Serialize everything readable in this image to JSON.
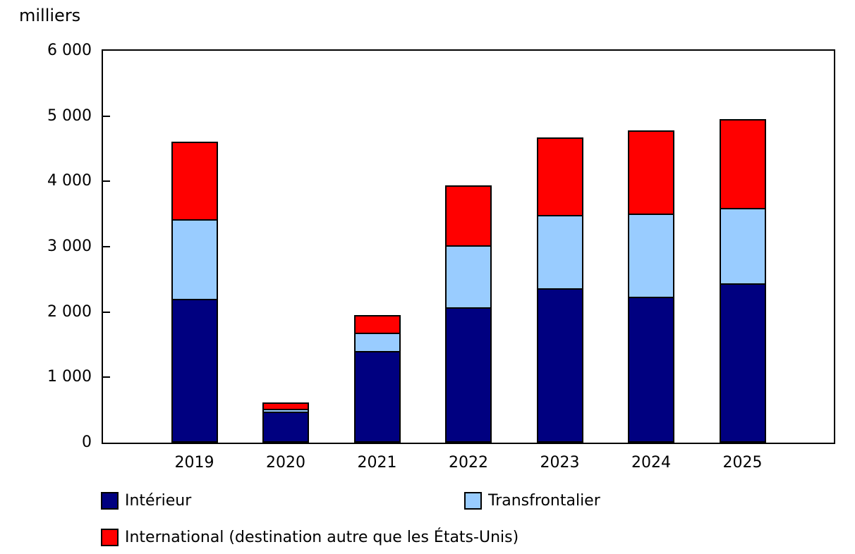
{
  "title": "milliers",
  "chart_data": {
    "type": "bar",
    "stacked": true,
    "title": "milliers",
    "xlabel": "",
    "ylabel": "milliers",
    "categories": [
      "2019",
      "2020",
      "2021",
      "2022",
      "2023",
      "2024",
      "2025"
    ],
    "series": [
      {
        "name": "Intérieur",
        "color": "#000080",
        "values": [
          2200,
          480,
          1400,
          2070,
          2360,
          2230,
          2440
        ]
      },
      {
        "name": "Transfrontalier",
        "color": "#99ccff",
        "values": [
          1240,
          60,
          310,
          970,
          1150,
          1300,
          1180
        ]
      },
      {
        "name": "International (destination autre que les États-Unis)",
        "color": "#ff0000",
        "values": [
          1210,
          115,
          290,
          940,
          1210,
          1290,
          1380
        ]
      }
    ],
    "totals": [
      4650,
      655,
      2000,
      3980,
      4720,
      4820,
      5000
    ],
    "ylim": [
      0,
      6000
    ],
    "ytick_step": 1000,
    "ytick_labels": [
      "0",
      "1 000",
      "2 000",
      "3 000",
      "4 000",
      "5 000",
      "6 000"
    ],
    "grid": false,
    "legend_position": "bottom"
  },
  "legend": {
    "items": [
      {
        "label": "Intérieur",
        "color": "#000080",
        "row": 0,
        "x": 143
      },
      {
        "label": "Transfrontalier",
        "color": "#99ccff",
        "row": 0,
        "x": 658
      },
      {
        "label": "International (destination autre que les États-Unis)",
        "color": "#ff0000",
        "row": 1,
        "x": 143
      }
    ]
  }
}
